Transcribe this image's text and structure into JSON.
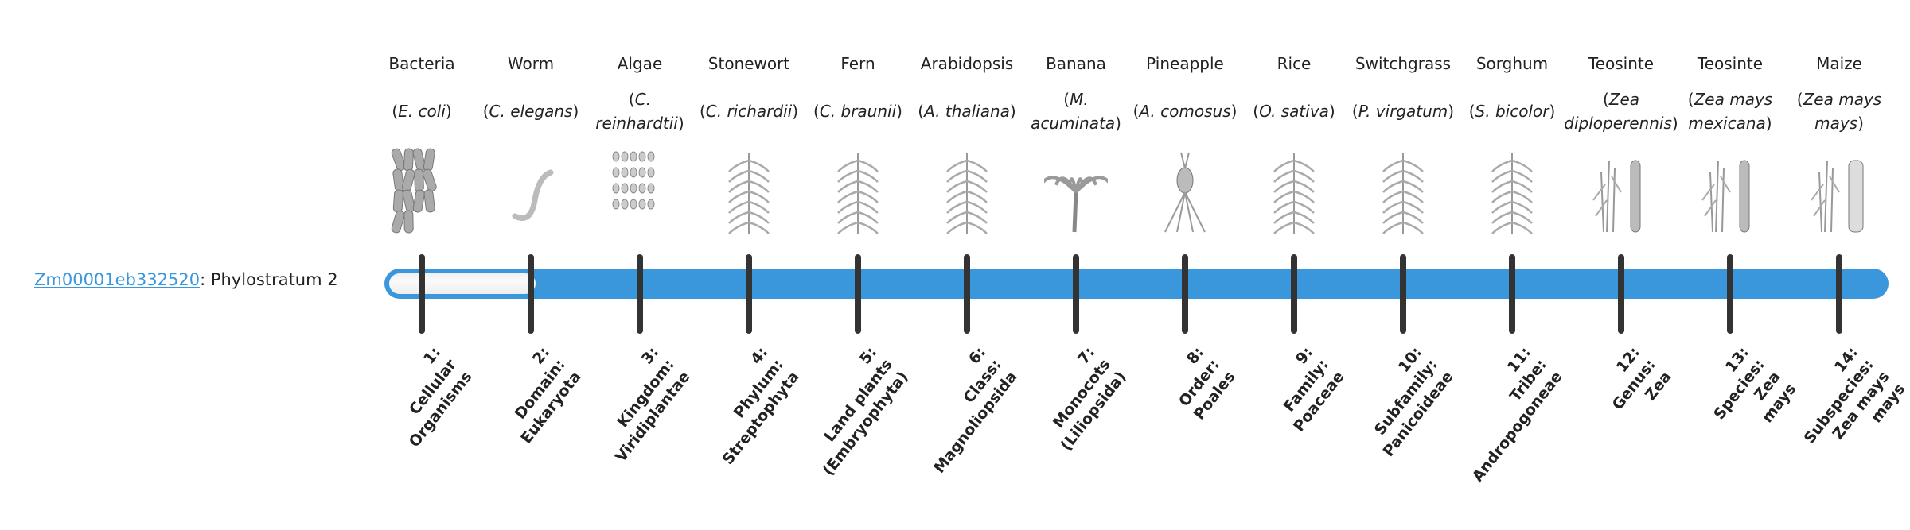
{
  "accent_color": "#3a97dc",
  "gene": {
    "id": "Zm00001eb332520",
    "suffix": ": Phylostratum 2"
  },
  "progress": {
    "current_stratum": 2,
    "total_strata": 14
  },
  "organisms": [
    {
      "common": "Bacteria",
      "sci": "E. coli",
      "icon": "bacteria-icon"
    },
    {
      "common": "Worm",
      "sci": "C. elegans",
      "icon": "worm-icon"
    },
    {
      "common": "Algae",
      "sci": "C. reinhardtii",
      "icon": "algae-icon"
    },
    {
      "common": "Stonewort",
      "sci": "C. richardii",
      "icon": "stonewort-icon"
    },
    {
      "common": "Fern",
      "sci": "C. braunii",
      "icon": "fern-icon"
    },
    {
      "common": "Arabidopsis",
      "sci": "A. thaliana",
      "icon": "arabidopsis-icon"
    },
    {
      "common": "Banana",
      "sci": "M. acuminata",
      "icon": "banana-icon"
    },
    {
      "common": "Pineapple",
      "sci": "A. comosus",
      "icon": "pineapple-icon"
    },
    {
      "common": "Rice",
      "sci": "O. sativa",
      "icon": "rice-icon"
    },
    {
      "common": "Switchgrass",
      "sci": "P. virgatum",
      "icon": "switchgrass-icon"
    },
    {
      "common": "Sorghum",
      "sci": "S. bicolor",
      "icon": "sorghum-icon"
    },
    {
      "common": "Teosinte",
      "sci": "Zea diploperennis",
      "icon": "teosinte-icon"
    },
    {
      "common": "Teosinte",
      "sci": "Zea mays mexicana",
      "icon": "teosinte-icon"
    },
    {
      "common": "Maize",
      "sci": "Zea mays mays",
      "icon": "maize-icon"
    }
  ],
  "strata": [
    [
      "1:",
      "Cellular",
      "Organisms"
    ],
    [
      "2:",
      "Domain:",
      "Eukaryota"
    ],
    [
      "3:",
      "Kingdom:",
      "Viridiplantae"
    ],
    [
      "4:",
      "Phylum:",
      "Streptophyta"
    ],
    [
      "5:",
      "Land plants",
      "(Embryophyta)"
    ],
    [
      "6:",
      "Class:",
      "Magnoliopsida"
    ],
    [
      "7:",
      "Monocots",
      "(Liliopsida)"
    ],
    [
      "8:",
      "Order:",
      "Poales"
    ],
    [
      "9:",
      "Family:",
      "Poaceae"
    ],
    [
      "10:",
      "Subfamily:",
      "Panicoideae"
    ],
    [
      "11:",
      "Tribe:",
      "Andropogoneae"
    ],
    [
      "12:",
      "Genus:",
      "Zea"
    ],
    [
      "13:",
      "Species:",
      "Zea",
      "mays"
    ],
    [
      "14:",
      "Subspecies:",
      "Zea mays",
      "mays"
    ]
  ]
}
